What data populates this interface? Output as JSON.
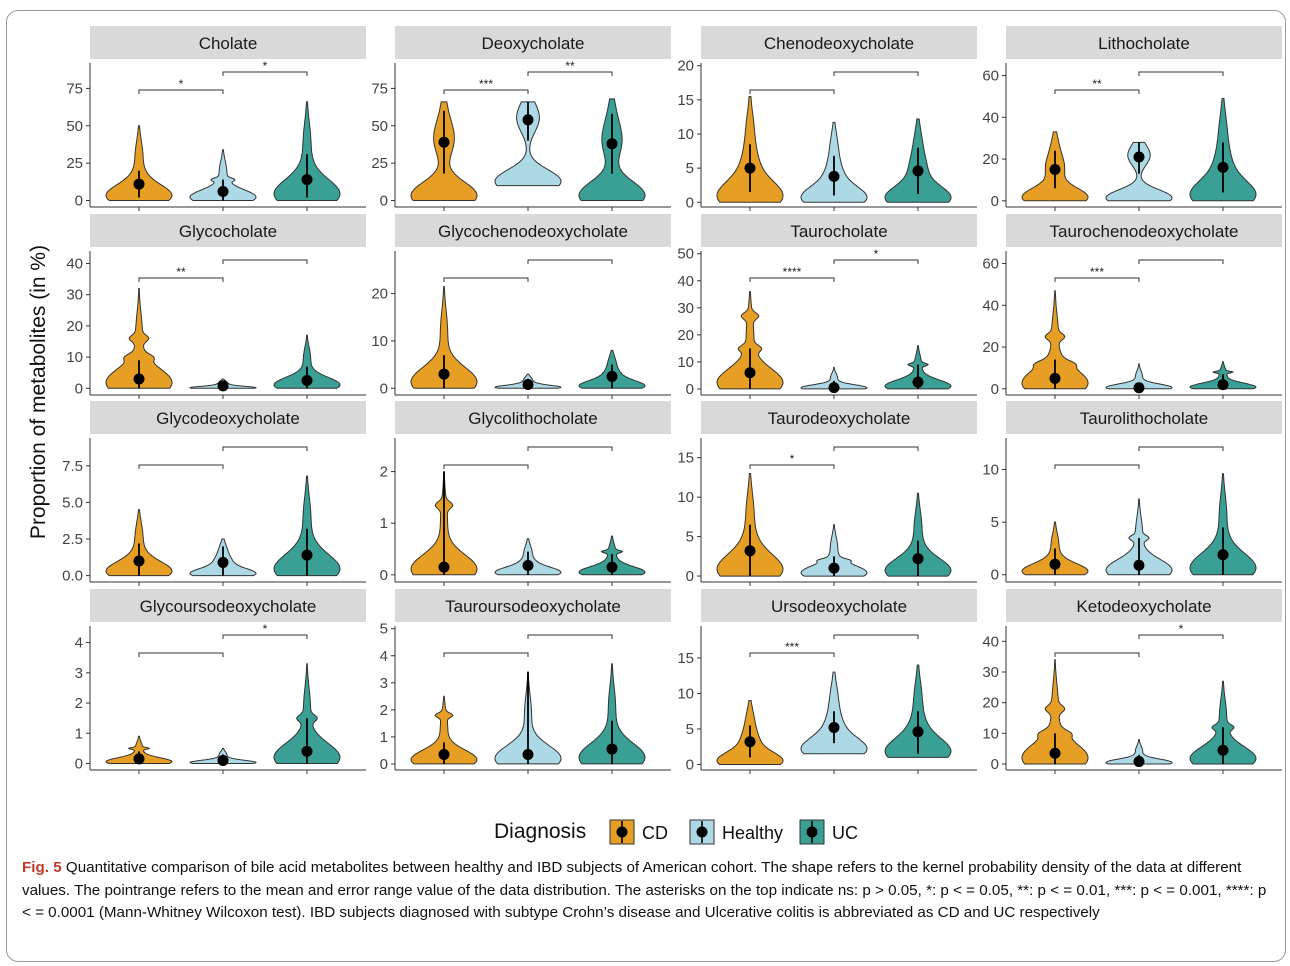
{
  "chart_data": {
    "type": "violin",
    "ylabel": "Proportion of metabolites (in %)",
    "legend": {
      "title": "Diagnosis",
      "position": "bottom",
      "entries": [
        {
          "name": "CD",
          "color": "#E69F24"
        },
        {
          "name": "Healthy",
          "color": "#ADD8E6"
        },
        {
          "name": "UC",
          "color": "#3A9F95"
        }
      ]
    },
    "groups": [
      "CD",
      "Healthy",
      "UC"
    ],
    "facets": [
      {
        "title": "Cholate",
        "ylim": [
          -3,
          92
        ],
        "ticks": [
          0,
          25,
          50,
          75
        ],
        "groups": [
          {
            "min": 0,
            "max": 50,
            "mean": 11,
            "lo": 2,
            "hi": 20,
            "outliers": []
          },
          {
            "min": 0,
            "max": 34,
            "mean": 6,
            "lo": 0,
            "hi": 14,
            "outliers": [
              14
            ]
          },
          {
            "min": 0,
            "max": 66,
            "mean": 14,
            "lo": 2,
            "hi": 31,
            "outliers": []
          }
        ],
        "sig": [
          {
            "label": "*",
            "from": 0,
            "to": 1,
            "level": 1
          },
          {
            "label": "*",
            "from": 1,
            "to": 2,
            "level": 2
          }
        ]
      },
      {
        "title": "Deoxycholate",
        "ylim": [
          -3,
          92
        ],
        "ticks": [
          0,
          25,
          50,
          75
        ],
        "groups": [
          {
            "min": 0,
            "max": 66,
            "mean": 39,
            "lo": 18,
            "hi": 60,
            "outliers": []
          },
          {
            "min": 10,
            "max": 66,
            "mean": 54,
            "lo": 40,
            "hi": 66,
            "outliers": []
          },
          {
            "min": 0,
            "max": 68,
            "mean": 38,
            "lo": 18,
            "hi": 58,
            "outliers": []
          }
        ],
        "sig": [
          {
            "label": "***",
            "from": 0,
            "to": 1,
            "level": 1
          },
          {
            "label": "**",
            "from": 1,
            "to": 2,
            "level": 2
          }
        ]
      },
      {
        "title": "Chenodeoxycholate",
        "ylim": [
          -0.4,
          20.4
        ],
        "ticks": [
          0,
          5,
          10,
          15,
          20
        ],
        "groups": [
          {
            "min": 0,
            "max": 15.5,
            "mean": 5,
            "lo": 1.5,
            "hi": 8.5,
            "outliers": []
          },
          {
            "min": 0,
            "max": 11.7,
            "mean": 3.8,
            "lo": 1,
            "hi": 6.8,
            "outliers": []
          },
          {
            "min": 0,
            "max": 12.2,
            "mean": 4.6,
            "lo": 1.2,
            "hi": 8,
            "outliers": []
          }
        ],
        "sig": [
          {
            "label": "",
            "from": 0,
            "to": 1,
            "level": 1
          },
          {
            "label": "",
            "from": 1,
            "to": 2,
            "level": 2
          }
        ]
      },
      {
        "title": "Lithocholate",
        "ylim": [
          -2,
          66
        ],
        "ticks": [
          0,
          20,
          40,
          60
        ],
        "groups": [
          {
            "min": 0,
            "max": 33,
            "mean": 15,
            "lo": 6,
            "hi": 24,
            "outliers": []
          },
          {
            "min": 0,
            "max": 28,
            "mean": 21,
            "lo": 13,
            "hi": 28,
            "outliers": []
          },
          {
            "min": 0,
            "max": 49,
            "mean": 16,
            "lo": 4,
            "hi": 28,
            "outliers": []
          }
        ],
        "sig": [
          {
            "label": "**",
            "from": 0,
            "to": 1,
            "level": 1
          },
          {
            "label": "",
            "from": 1,
            "to": 2,
            "level": 2
          }
        ]
      },
      {
        "title": "Glycocholate",
        "ylim": [
          -1.5,
          44
        ],
        "ticks": [
          0,
          10,
          20,
          30,
          40
        ],
        "groups": [
          {
            "min": 0,
            "max": 32,
            "mean": 3,
            "lo": 0,
            "hi": 9,
            "outliers": [
              16,
              10
            ]
          },
          {
            "min": 0,
            "max": 3,
            "mean": 0.8,
            "lo": 0,
            "hi": 2,
            "outliers": []
          },
          {
            "min": 0,
            "max": 17,
            "mean": 2.5,
            "lo": 0,
            "hi": 7,
            "outliers": []
          }
        ],
        "sig": [
          {
            "label": "**",
            "from": 0,
            "to": 1,
            "level": 1
          },
          {
            "label": "",
            "from": 1,
            "to": 2,
            "level": 2
          }
        ]
      },
      {
        "title": "Glycochenodeoxycholate",
        "ylim": [
          -1,
          29
        ],
        "ticks": [
          0,
          10,
          20
        ],
        "groups": [
          {
            "min": 0,
            "max": 21.5,
            "mean": 3,
            "lo": 0,
            "hi": 7,
            "outliers": []
          },
          {
            "min": 0,
            "max": 3,
            "mean": 0.8,
            "lo": 0,
            "hi": 2,
            "outliers": []
          },
          {
            "min": 0,
            "max": 8,
            "mean": 2.5,
            "lo": 0,
            "hi": 5,
            "outliers": []
          }
        ],
        "sig": [
          {
            "label": "",
            "from": 0,
            "to": 1,
            "level": 1
          },
          {
            "label": "",
            "from": 1,
            "to": 2,
            "level": 2
          }
        ]
      },
      {
        "title": "Taurocholate",
        "ylim": [
          -1.5,
          51
        ],
        "ticks": [
          0,
          10,
          20,
          30,
          40,
          50
        ],
        "groups": [
          {
            "min": 0,
            "max": 36,
            "mean": 6,
            "lo": 0,
            "hi": 15,
            "outliers": [
              27,
              15
            ]
          },
          {
            "min": 0,
            "max": 8,
            "mean": 0.5,
            "lo": 0,
            "hi": 3,
            "outliers": []
          },
          {
            "min": 0,
            "max": 16,
            "mean": 2.5,
            "lo": 0,
            "hi": 9,
            "outliers": [
              9
            ]
          }
        ],
        "sig": [
          {
            "label": "****",
            "from": 0,
            "to": 1,
            "level": 1
          },
          {
            "label": "*",
            "from": 1,
            "to": 2,
            "level": 2
          }
        ]
      },
      {
        "title": "Taurochenodeoxycholate",
        "ylim": [
          -2,
          66
        ],
        "ticks": [
          0,
          20,
          40,
          60
        ],
        "groups": [
          {
            "min": 0,
            "max": 47,
            "mean": 5,
            "lo": 0,
            "hi": 14,
            "outliers": [
              25,
              12
            ]
          },
          {
            "min": 0,
            "max": 12,
            "mean": 0.5,
            "lo": 0,
            "hi": 2,
            "outliers": []
          },
          {
            "min": 0,
            "max": 13,
            "mean": 2,
            "lo": 0,
            "hi": 7,
            "outliers": [
              8
            ]
          }
        ],
        "sig": [
          {
            "label": "***",
            "from": 0,
            "to": 1,
            "level": 1
          },
          {
            "label": "",
            "from": 1,
            "to": 2,
            "level": 2
          }
        ]
      },
      {
        "title": "Glycodeoxycholate",
        "ylim": [
          -0.3,
          9.4
        ],
        "ticks": [
          0.0,
          2.5,
          5.0,
          7.5
        ],
        "tick_labels": [
          "0.0",
          "2.5",
          "5.0",
          "7.5"
        ],
        "groups": [
          {
            "min": 0,
            "max": 4.5,
            "mean": 1,
            "lo": 0,
            "hi": 2.2,
            "outliers": []
          },
          {
            "min": 0,
            "max": 2.5,
            "mean": 0.9,
            "lo": 0,
            "hi": 2,
            "outliers": []
          },
          {
            "min": 0,
            "max": 6.8,
            "mean": 1.4,
            "lo": 0,
            "hi": 3.2,
            "outliers": []
          }
        ],
        "sig": [
          {
            "label": "",
            "from": 0,
            "to": 1,
            "level": 1
          },
          {
            "label": "",
            "from": 1,
            "to": 2,
            "level": 2
          }
        ]
      },
      {
        "title": "Glycolithocholate",
        "ylim": [
          -0.1,
          2.65
        ],
        "ticks": [
          0,
          1,
          2
        ],
        "groups": [
          {
            "min": 0,
            "max": 2,
            "mean": 0.15,
            "lo": 0,
            "hi": 2,
            "outliers": [
              1.35
            ]
          },
          {
            "min": 0,
            "max": 0.7,
            "mean": 0.18,
            "lo": 0,
            "hi": 0.45,
            "outliers": []
          },
          {
            "min": 0,
            "max": 0.75,
            "mean": 0.15,
            "lo": 0,
            "hi": 0.4,
            "outliers": [
              0.45
            ]
          }
        ],
        "sig": [
          {
            "label": "",
            "from": 0,
            "to": 1,
            "level": 1
          },
          {
            "label": "",
            "from": 1,
            "to": 2,
            "level": 2
          }
        ]
      },
      {
        "title": "Taurodeoxycholate",
        "ylim": [
          -0.5,
          17.5
        ],
        "ticks": [
          0,
          5,
          10,
          15
        ],
        "groups": [
          {
            "min": 0,
            "max": 13,
            "mean": 3.2,
            "lo": 0,
            "hi": 6.5,
            "outliers": []
          },
          {
            "min": 0,
            "max": 6.5,
            "mean": 1,
            "lo": 0,
            "hi": 2.5,
            "outliers": [
              2
            ]
          },
          {
            "min": 0,
            "max": 10.5,
            "mean": 2.2,
            "lo": 0,
            "hi": 4.5,
            "outliers": []
          }
        ],
        "sig": [
          {
            "label": "*",
            "from": 0,
            "to": 1,
            "level": 1
          },
          {
            "label": "",
            "from": 1,
            "to": 2,
            "level": 2
          }
        ]
      },
      {
        "title": "Taurolithocholate",
        "ylim": [
          -0.5,
          13
        ],
        "ticks": [
          0,
          5,
          10
        ],
        "groups": [
          {
            "min": 0,
            "max": 5,
            "mean": 1,
            "lo": 0,
            "hi": 2.5,
            "outliers": []
          },
          {
            "min": 0,
            "max": 7.2,
            "mean": 0.9,
            "lo": 0,
            "hi": 3.5,
            "outliers": [
              3.5
            ]
          },
          {
            "min": 0,
            "max": 9.6,
            "mean": 1.9,
            "lo": 0,
            "hi": 4.5,
            "outliers": []
          }
        ],
        "sig": [
          {
            "label": "",
            "from": 0,
            "to": 1,
            "level": 1
          },
          {
            "label": "",
            "from": 1,
            "to": 2,
            "level": 2
          }
        ]
      },
      {
        "title": "Glycoursodeoxycholate",
        "ylim": [
          -0.15,
          4.55
        ],
        "ticks": [
          0,
          1,
          2,
          3,
          4
        ],
        "groups": [
          {
            "min": 0,
            "max": 0.9,
            "mean": 0.15,
            "lo": 0,
            "hi": 0.4,
            "outliers": [
              0.5
            ]
          },
          {
            "min": 0,
            "max": 0.5,
            "mean": 0.1,
            "lo": 0,
            "hi": 0.3,
            "outliers": []
          },
          {
            "min": 0,
            "max": 3.3,
            "mean": 0.4,
            "lo": 0,
            "hi": 1.5,
            "outliers": [
              1.5
            ]
          }
        ],
        "sig": [
          {
            "label": "",
            "from": 0,
            "to": 1,
            "level": 1
          },
          {
            "label": "*",
            "from": 1,
            "to": 2,
            "level": 2
          }
        ]
      },
      {
        "title": "Tauroursodeoxycholate",
        "ylim": [
          -0.15,
          5.1
        ],
        "ticks": [
          0,
          1,
          2,
          3,
          4,
          5
        ],
        "groups": [
          {
            "min": 0,
            "max": 2.5,
            "mean": 0.35,
            "lo": 0,
            "hi": 0.8,
            "outliers": [
              1.8
            ]
          },
          {
            "min": 0,
            "max": 3.4,
            "mean": 0.35,
            "lo": 0,
            "hi": 3.4,
            "outliers": []
          },
          {
            "min": 0,
            "max": 3.7,
            "mean": 0.55,
            "lo": 0,
            "hi": 1.6,
            "outliers": []
          }
        ],
        "sig": [
          {
            "label": "",
            "from": 0,
            "to": 1,
            "level": 1
          },
          {
            "label": "",
            "from": 1,
            "to": 2,
            "level": 2
          }
        ]
      },
      {
        "title": "Ursodeoxycholate",
        "ylim": [
          -0.5,
          19.5
        ],
        "ticks": [
          0,
          5,
          10,
          15
        ],
        "groups": [
          {
            "min": 0,
            "max": 9,
            "mean": 3.2,
            "lo": 1,
            "hi": 5.5,
            "outliers": []
          },
          {
            "min": 1.5,
            "max": 13,
            "mean": 5.2,
            "lo": 3,
            "hi": 7.5,
            "outliers": []
          },
          {
            "min": 1,
            "max": 14,
            "mean": 4.6,
            "lo": 1.5,
            "hi": 7.5,
            "outliers": []
          }
        ],
        "sig": [
          {
            "label": "***",
            "from": 0,
            "to": 1,
            "level": 1
          },
          {
            "label": "",
            "from": 1,
            "to": 2,
            "level": 2
          }
        ]
      },
      {
        "title": "Ketodeoxycholate",
        "ylim": [
          -1.3,
          45
        ],
        "ticks": [
          0,
          10,
          20,
          30,
          40
        ],
        "groups": [
          {
            "min": 0,
            "max": 34,
            "mean": 3.5,
            "lo": 0,
            "hi": 10,
            "outliers": [
              18,
              10
            ]
          },
          {
            "min": 0,
            "max": 8,
            "mean": 0.8,
            "lo": 0,
            "hi": 3,
            "outliers": []
          },
          {
            "min": 0,
            "max": 27,
            "mean": 4.5,
            "lo": 0,
            "hi": 12,
            "outliers": [
              12
            ]
          }
        ],
        "sig": [
          {
            "label": "",
            "from": 0,
            "to": 1,
            "level": 1
          },
          {
            "label": "*",
            "from": 1,
            "to": 2,
            "level": 2
          }
        ]
      }
    ]
  },
  "caption": {
    "label": "Fig. 5",
    "text": " Quantitative comparison of bile acid metabolites between healthy and IBD subjects of American cohort. The shape refers to the kernel probability density of the data at different values. The pointrange refers to the mean and error range value of the data distribution. The asterisks on the top indicate ns: p > 0.05, *: p < = 0.05, **: p < = 0.01, ***: p < = 0.001, ****: p < = 0.0001 (Mann-Whitney Wilcoxon test). IBD subjects diagnosed with subtype Crohn’s disease and Ulcerative colitis is abbreviated as CD and UC respectively"
  }
}
